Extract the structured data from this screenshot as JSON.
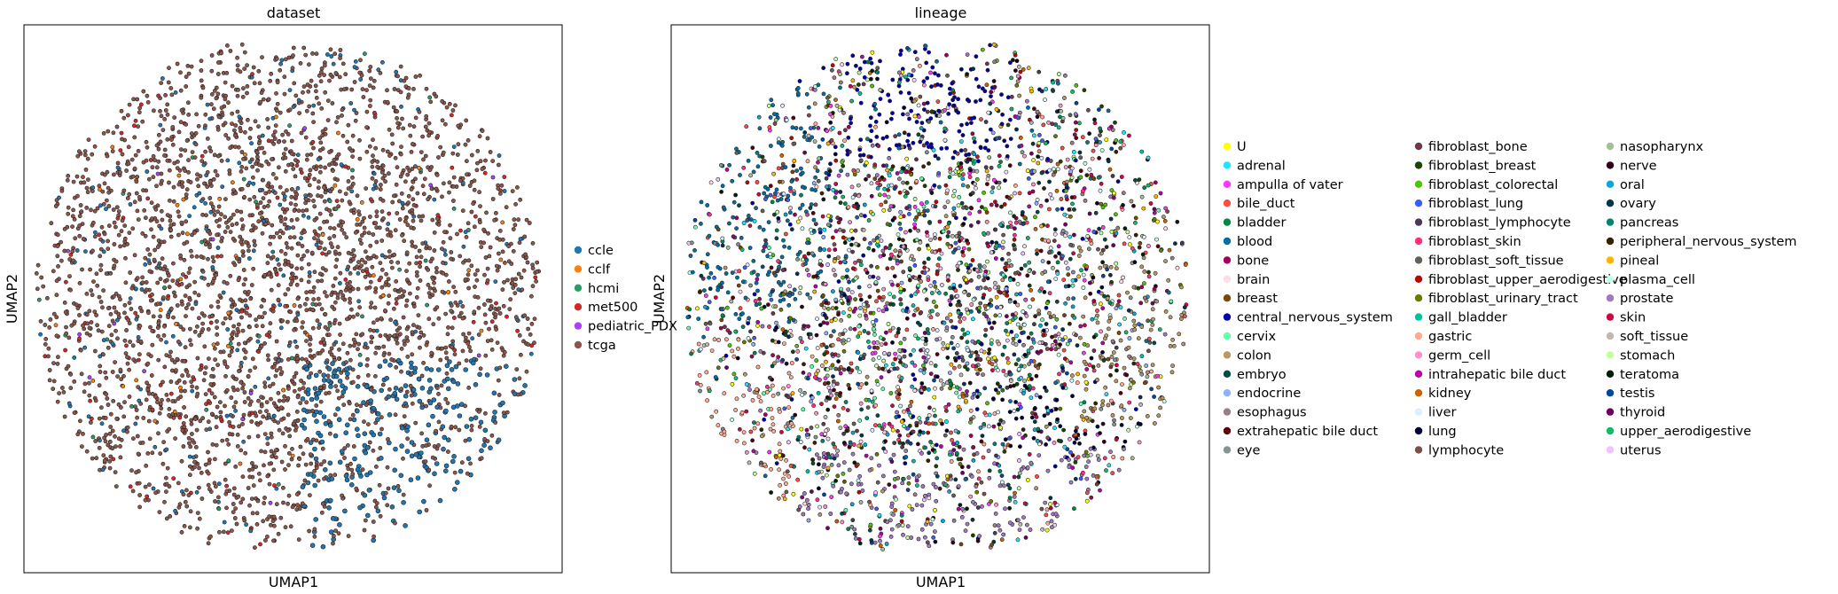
{
  "chart_data": [
    {
      "type": "scatter",
      "title": "dataset",
      "xlabel": "UMAP1",
      "ylabel": "UMAP2",
      "xticks": false,
      "yticks": false,
      "grid": false,
      "legend_placement": "right",
      "series": [
        {
          "name": "ccle",
          "color": "#1f77b4",
          "approx_share": 0.12,
          "region": "lower-right"
        },
        {
          "name": "cclf",
          "color": "#ff7f0e",
          "approx_share": 0.02,
          "region": "scattered"
        },
        {
          "name": "hcmi",
          "color": "#279e68",
          "approx_share": 0.01,
          "region": "scattered"
        },
        {
          "name": "met500",
          "color": "#d62728",
          "approx_share": 0.04,
          "region": "scattered"
        },
        {
          "name": "pediatric_PDX",
          "color": "#aa40fc",
          "approx_share": 0.01,
          "region": "scattered"
        },
        {
          "name": "tcga",
          "color": "#8c564b",
          "approx_share": 0.8,
          "region": "throughout"
        }
      ]
    },
    {
      "type": "scatter",
      "title": "lineage",
      "xlabel": "UMAP1",
      "ylabel": "UMAP2",
      "xticks": false,
      "yticks": false,
      "grid": false,
      "legend_placement": "right",
      "series": [
        {
          "name": "U",
          "color": "#ffff00"
        },
        {
          "name": "adrenal",
          "color": "#1ce6ff"
        },
        {
          "name": "ampulla of vater",
          "color": "#ff34ff"
        },
        {
          "name": "bile_duct",
          "color": "#ff4a46"
        },
        {
          "name": "bladder",
          "color": "#008941"
        },
        {
          "name": "blood",
          "color": "#006fa6"
        },
        {
          "name": "bone",
          "color": "#a30059"
        },
        {
          "name": "brain",
          "color": "#ffdbe5"
        },
        {
          "name": "breast",
          "color": "#7a4900"
        },
        {
          "name": "central_nervous_system",
          "color": "#0000a6"
        },
        {
          "name": "cervix",
          "color": "#63ffac"
        },
        {
          "name": "colon",
          "color": "#b79762"
        },
        {
          "name": "embryo",
          "color": "#004d43"
        },
        {
          "name": "endocrine",
          "color": "#8fb0ff"
        },
        {
          "name": "esophagus",
          "color": "#997d87"
        },
        {
          "name": "extrahepatic bile duct",
          "color": "#5a0007"
        },
        {
          "name": "eye",
          "color": "#809693"
        },
        {
          "name": "fibroblast_bone",
          "color": "#6a3a4c"
        },
        {
          "name": "fibroblast_breast",
          "color": "#1b4400"
        },
        {
          "name": "fibroblast_colorectal",
          "color": "#4fc601"
        },
        {
          "name": "fibroblast_lung",
          "color": "#3b5dff"
        },
        {
          "name": "fibroblast_lymphocyte",
          "color": "#4a3b53"
        },
        {
          "name": "fibroblast_skin",
          "color": "#ff2f80"
        },
        {
          "name": "fibroblast_soft_tissue",
          "color": "#61615a"
        },
        {
          "name": "fibroblast_upper_aerodigestive",
          "color": "#ba0900"
        },
        {
          "name": "fibroblast_urinary_tract",
          "color": "#6b7900"
        },
        {
          "name": "gall_bladder",
          "color": "#00c2a0"
        },
        {
          "name": "gastric",
          "color": "#ffaa92"
        },
        {
          "name": "germ_cell",
          "color": "#ff90c9"
        },
        {
          "name": "intrahepatic bile duct",
          "color": "#b903aa"
        },
        {
          "name": "kidney",
          "color": "#d16100"
        },
        {
          "name": "liver",
          "color": "#ddefff"
        },
        {
          "name": "lung",
          "color": "#000035"
        },
        {
          "name": "lymphocyte",
          "color": "#7b4f4b"
        },
        {
          "name": "nasopharynx",
          "color": "#a1c299"
        },
        {
          "name": "nerve",
          "color": "#300018"
        },
        {
          "name": "oral",
          "color": "#0aa6d8"
        },
        {
          "name": "ovary",
          "color": "#013349"
        },
        {
          "name": "pancreas",
          "color": "#00846f"
        },
        {
          "name": "peripheral_nervous_system",
          "color": "#372101"
        },
        {
          "name": "pineal",
          "color": "#ffb500"
        },
        {
          "name": "plasma_cell",
          "color": "#c2ffed"
        },
        {
          "name": "prostate",
          "color": "#a079bf"
        },
        {
          "name": "skin",
          "color": "#cc0744"
        },
        {
          "name": "soft_tissue",
          "color": "#c0b9b2"
        },
        {
          "name": "stomach",
          "color": "#c2ff99"
        },
        {
          "name": "teratoma",
          "color": "#001e09"
        },
        {
          "name": "testis",
          "color": "#00489c"
        },
        {
          "name": "thyroid",
          "color": "#6f0062"
        },
        {
          "name": "upper_aerodigestive",
          "color": "#0cbd66"
        },
        {
          "name": "uterus",
          "color": "#eec3ff"
        }
      ]
    }
  ]
}
